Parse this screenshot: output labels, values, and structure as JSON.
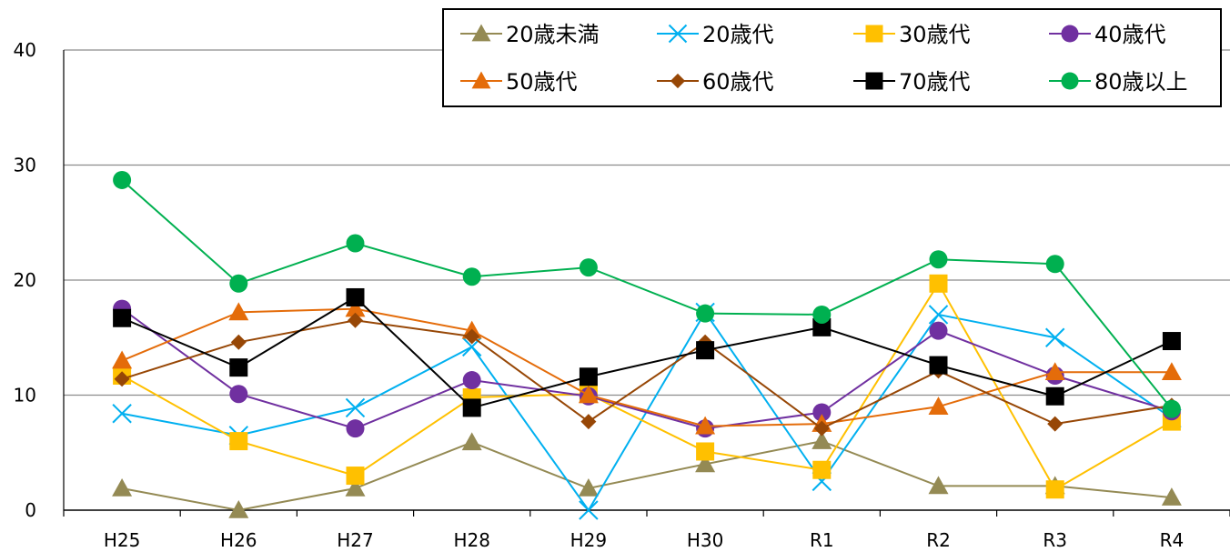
{
  "chart_data": {
    "type": "line",
    "categories": [
      "H25",
      "H26",
      "H27",
      "H28",
      "H29",
      "H30",
      "R1",
      "R2",
      "R3",
      "R4"
    ],
    "ylim": [
      0,
      40
    ],
    "yticks": [
      0,
      10,
      20,
      30,
      40
    ],
    "grid": true,
    "legend_position": "top-right",
    "series": [
      {
        "name": "20歳未満",
        "color": "#948A54",
        "marker": "triangle",
        "values": [
          1.9,
          0.0,
          1.9,
          5.9,
          1.9,
          4.0,
          6.0,
          2.1,
          2.1,
          1.1
        ]
      },
      {
        "name": "20歳代",
        "color": "#00B0F0",
        "marker": "x",
        "values": [
          8.4,
          6.5,
          8.9,
          14.2,
          0.0,
          17.2,
          2.5,
          17.0,
          15.0,
          8.0
        ]
      },
      {
        "name": "30歳代",
        "color": "#FFC000",
        "marker": "square",
        "values": [
          11.7,
          6.0,
          3.0,
          9.8,
          10.1,
          5.1,
          3.5,
          19.7,
          1.8,
          7.7
        ]
      },
      {
        "name": "40歳代",
        "color": "#7030A0",
        "marker": "circle",
        "values": [
          17.5,
          10.1,
          7.1,
          11.3,
          9.9,
          7.1,
          8.5,
          15.6,
          11.7,
          8.6
        ]
      },
      {
        "name": "50歳代",
        "color": "#E46C0A",
        "marker": "triangle",
        "values": [
          13.0,
          17.2,
          17.5,
          15.6,
          10.0,
          7.3,
          7.5,
          9.0,
          12.0,
          12.0
        ]
      },
      {
        "name": "60歳代",
        "color": "#974706",
        "marker": "diamond",
        "values": [
          11.4,
          14.6,
          16.5,
          15.1,
          7.7,
          14.6,
          7.1,
          12.1,
          7.5,
          9.1
        ]
      },
      {
        "name": "70歳代",
        "color": "#000000",
        "marker": "square",
        "values": [
          16.7,
          12.4,
          18.5,
          8.9,
          11.6,
          13.9,
          15.9,
          12.6,
          9.9,
          14.7
        ]
      },
      {
        "name": "80歳以上",
        "color": "#00B050",
        "marker": "circle",
        "values": [
          28.7,
          19.7,
          23.2,
          20.3,
          21.1,
          17.1,
          17.0,
          21.8,
          21.4,
          8.8
        ]
      }
    ]
  }
}
